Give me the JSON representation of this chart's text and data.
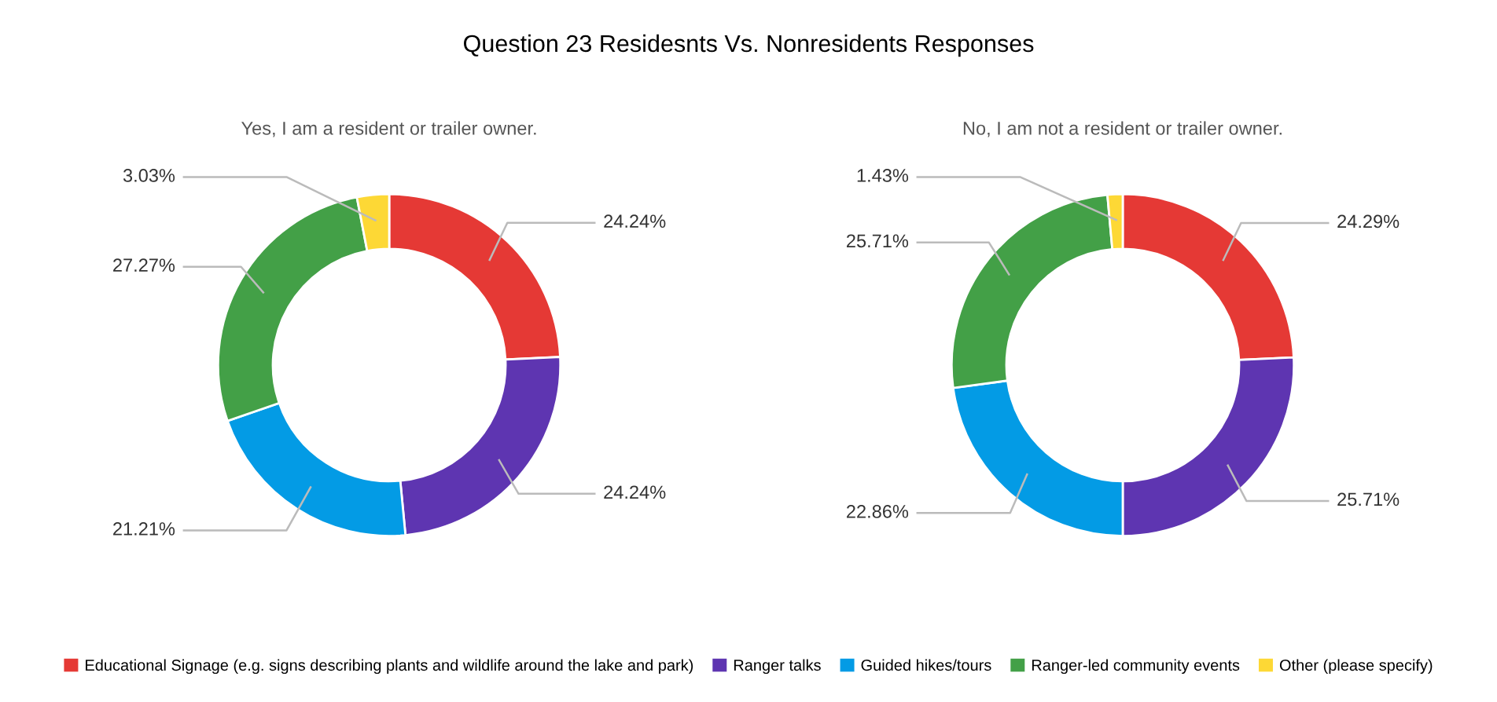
{
  "chart_data": [
    {
      "type": "donut",
      "title": "Question 23 Residesnts Vs. Nonresidents Responses",
      "subtitle": "Yes, I am a resident or trailer owner.",
      "categories": [
        "Educational Signage (e.g. signs describing plants and wildlife around the lake and park)",
        "Ranger talks",
        "Guided hikes/tours",
        "Ranger-led community events",
        "Other (please specify)"
      ],
      "values": [
        24.24,
        24.24,
        21.21,
        27.27,
        3.03
      ],
      "value_labels": [
        "24.24%",
        "24.24%",
        "21.21%",
        "27.27%",
        "3.03%"
      ],
      "colors": [
        "#e53935",
        "#5e35b1",
        "#039be5",
        "#43a047",
        "#fdd835"
      ],
      "legend": "bottom"
    },
    {
      "type": "donut",
      "subtitle": "No, I am not a resident or trailer owner.",
      "categories": [
        null,
        null,
        null,
        null,
        null
      ],
      "values": [
        24.29,
        25.71,
        22.86,
        25.71,
        1.43
      ],
      "value_labels": [
        "24.29%",
        "25.71%",
        "22.86%",
        "25.71%",
        "1.43%"
      ],
      "colors": [
        "#e53935",
        "#5e35b1",
        "#039be5",
        "#43a047",
        "#fdd835"
      ]
    }
  ]
}
